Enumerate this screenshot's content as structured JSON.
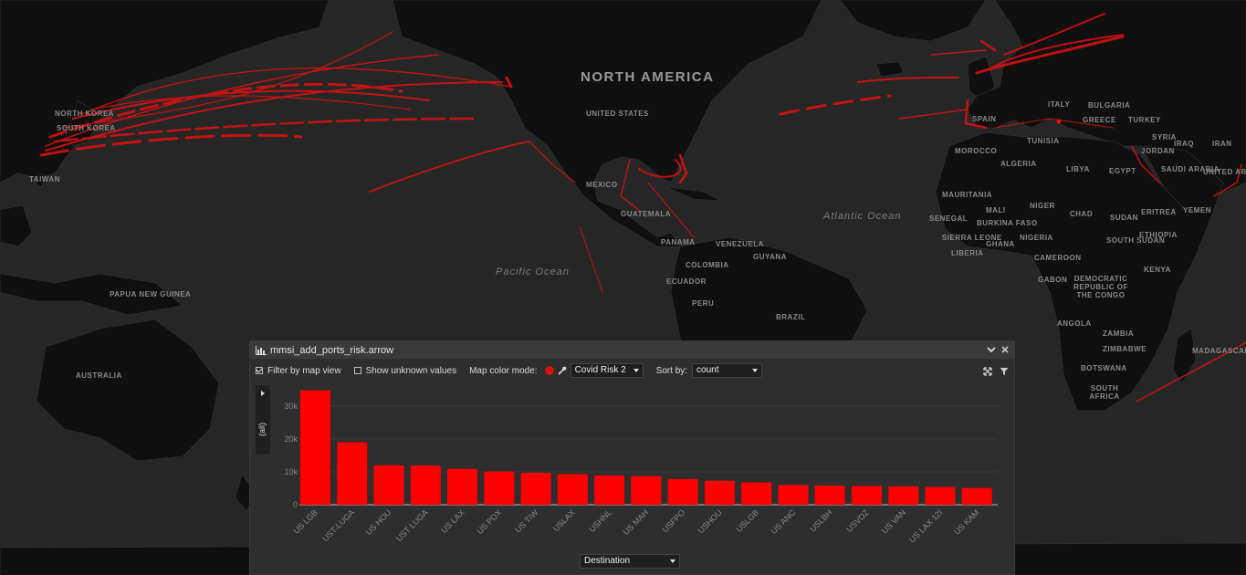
{
  "map": {
    "labels": {
      "north_america": "NORTH AMERICA",
      "united_states": "UNITED STATES",
      "mexico": "MEXICO",
      "guatemala": "GUATEMALA",
      "panama": "PANAMA",
      "venezuela": "VENEZUELA",
      "guyana": "GUYANA",
      "colombia": "COLOMBIA",
      "ecuador": "ECUADOR",
      "peru": "PERU",
      "brazil": "BRAZIL",
      "pacific_ocean": "Pacific Ocean",
      "atlantic_ocean": "Atlantic Ocean",
      "papua_new_guinea": "PAPUA NEW GUINEA",
      "australia": "AUSTRALIA",
      "taiwan": "TAIWAN",
      "north_korea": "NORTH KOREA",
      "south_korea": "SOUTH KOREA",
      "spain": "SPAIN",
      "italy": "ITALY",
      "bulgaria": "BULGARIA",
      "greece": "GREECE",
      "turkey": "TURKEY",
      "tunisia": "TUNISIA",
      "morocco": "MOROCCO",
      "algeria": "ALGERIA",
      "libya": "LIBYA",
      "egypt": "EGYPT",
      "syria": "SYRIA",
      "iraq": "IRAQ",
      "iran": "IRAN",
      "jordan": "JORDAN",
      "saudi_arabia": "SAUDI ARABIA",
      "uae": "UNITED ARAB EMIRATES",
      "mauritania": "MAURITANIA",
      "mali": "MALI",
      "niger": "NIGER",
      "chad": "CHAD",
      "sudan": "SUDAN",
      "eritrea": "ERITREA",
      "yemen": "YEMEN",
      "senegal": "SENEGAL",
      "burkina_faso": "BURKINA FASO",
      "nigeria": "NIGERIA",
      "ethiopia": "ETHIOPIA",
      "south_sudan": "SOUTH SUDAN",
      "sierra_leone": "SIERRA LEONE",
      "liberia": "LIBERIA",
      "ghana": "GHANA",
      "cameroon": "CAMEROON",
      "gabon": "GABON",
      "drc": "DEMOCRATIC REPUBLIC OF THE CONGO",
      "kenya": "KENYA",
      "angola": "ANGOLA",
      "zambia": "ZAMBIA",
      "zimbabwe": "ZIMBABWE",
      "madagascar": "MADAGASCAR",
      "botswana": "BOTSWANA",
      "south_africa": "SOUTH AFRICA"
    },
    "route_color": "#e01010"
  },
  "panel": {
    "title": "mmsi_add_ports_risk.arrow",
    "filter_by_map_view": "Filter by map view",
    "show_unknown_values": "Show unknown values",
    "map_color_mode_label": "Map color mode:",
    "color_mode_value": "Covid Risk 2",
    "sort_by_label": "Sort by:",
    "sort_by_value": "count",
    "side_tab_label": "(all)",
    "destination_select": "Destination",
    "accent_color": "#ff0000"
  },
  "chart_data": {
    "type": "bar",
    "categories": [
      "US LGB",
      "UST-LUGA",
      "US HOU",
      "UST LUGA",
      "US LAX",
      "US PDX",
      "US TIW",
      "USLAX",
      "USHNL",
      "US MAH",
      "USFPO",
      "USHOU",
      "USLGB",
      "US ANC",
      "USLBH",
      "USVDZ",
      "US VAN",
      "US LAX 12I",
      "US KAM"
    ],
    "values": [
      34800,
      19000,
      12000,
      11900,
      10900,
      10100,
      9700,
      9300,
      8900,
      8700,
      7800,
      7300,
      6800,
      6000,
      5800,
      5700,
      5600,
      5400,
      5100
    ],
    "yticks": [
      "0",
      "10k",
      "20k",
      "30k"
    ],
    "ylim": [
      0,
      35000
    ],
    "color": "#ff0000",
    "grid": true,
    "legend": "none"
  }
}
